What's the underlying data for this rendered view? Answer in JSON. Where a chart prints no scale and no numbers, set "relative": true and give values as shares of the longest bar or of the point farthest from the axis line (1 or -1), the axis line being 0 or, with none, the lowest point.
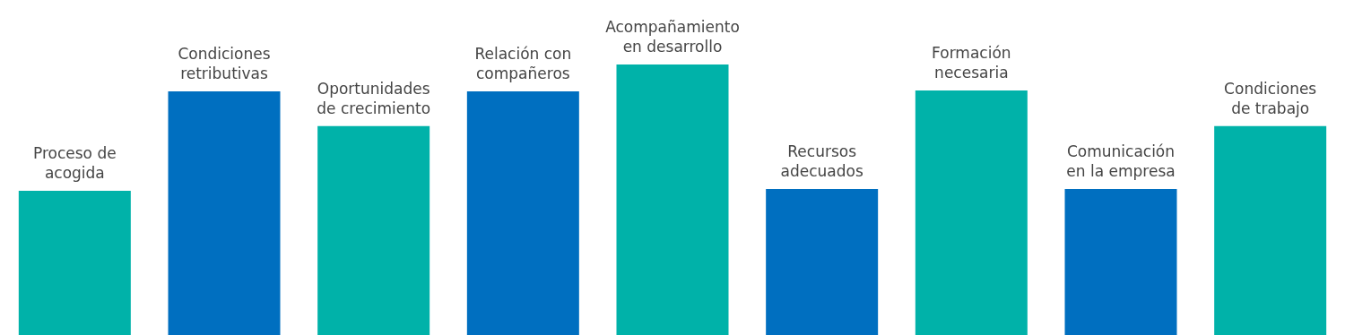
{
  "chart_data": {
    "type": "bar",
    "relative": true,
    "legend": false,
    "categories": [
      "Proceso de\nacogida",
      "Condiciones\nretributivas",
      "Oportunidades\nde crecimiento",
      "Relación con\ncompañeros",
      "Acompañamiento\nen desarrollo",
      "Recursos\nadecuados",
      "Formación\nnecesaria",
      "Comunicación\nen la empresa",
      "Condiciones\nde trabajo"
    ],
    "values": [
      0.533,
      0.901,
      0.772,
      0.901,
      1,
      0.54,
      0.904,
      0.54,
      0.772
    ],
    "colors": [
      "#00b2a9",
      "#006fc0",
      "#00b2a9",
      "#006fc0",
      "#00b2a9",
      "#006fc0",
      "#00b2a9",
      "#006fc0",
      "#00b2a9"
    ]
  }
}
